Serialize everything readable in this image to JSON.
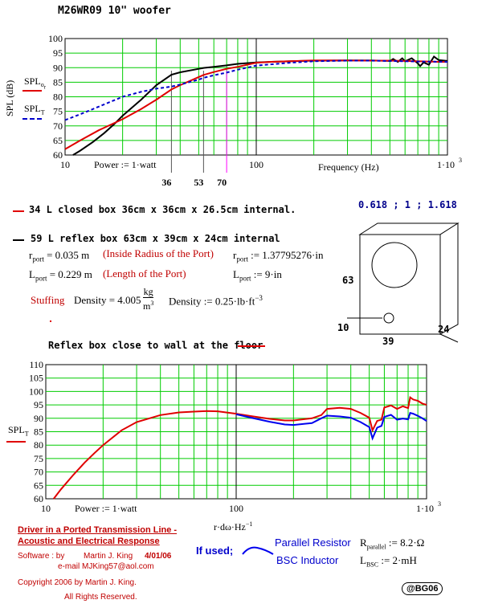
{
  "title": "M26WR09 10\" woofer",
  "chart_data": [
    {
      "type": "line",
      "x_scale": "log",
      "xlim": [
        10,
        1000
      ],
      "ylim": [
        60,
        100
      ],
      "yticks": [
        60,
        65,
        70,
        75,
        80,
        85,
        90,
        95,
        100
      ],
      "xtick_labels": [
        "10",
        "100",
        "1·10",
        "3"
      ],
      "xlabel": "Frequency (Hz)",
      "ylabel": "SPL (dB)",
      "legend": [
        "SPL",
        "o",
        "r",
        "SPL",
        "T"
      ],
      "annotation": "Power := 1·watt",
      "markers": [
        {
          "label": "36",
          "x": 36
        },
        {
          "label": "53",
          "x": 53
        },
        {
          "label": "70",
          "x": 70
        },
        {
          "x": 100
        }
      ],
      "grid": true,
      "series": [
        {
          "color": "#000000",
          "style": "solid",
          "x": [
            11,
            12,
            14,
            16,
            18,
            20,
            25,
            30,
            36,
            40,
            50,
            53,
            60,
            70,
            80,
            100,
            120,
            150,
            200,
            300,
            400,
            500,
            520,
            550,
            580,
            600,
            650,
            700,
            720,
            750,
            800,
            850,
            900,
            1000
          ],
          "y": [
            60,
            61.5,
            64.5,
            67.5,
            70.5,
            73.5,
            79,
            84,
            87.6,
            88.4,
            89.6,
            89.9,
            90.3,
            90.8,
            91.3,
            91.8,
            92,
            92.2,
            92.4,
            92.5,
            92.5,
            92.3,
            93,
            92,
            93.2,
            92.2,
            93.2,
            91.5,
            90.5,
            91.8,
            91,
            93.8,
            92.6,
            92.3
          ]
        },
        {
          "color": "#e00000",
          "style": "solid",
          "x": [
            10,
            12,
            15,
            20,
            25,
            30,
            36,
            40,
            50,
            53,
            60,
            70,
            80,
            100,
            120,
            150,
            200,
            300,
            400,
            500,
            600,
            700,
            800,
            900,
            1000
          ],
          "y": [
            62,
            65,
            68.5,
            72.3,
            75.8,
            79,
            82.5,
            84,
            86.8,
            87.5,
            88.5,
            89.6,
            90.3,
            91.7,
            92,
            92.2,
            92.5,
            92.5,
            92.4,
            92.4,
            92.3,
            92.2,
            92.1,
            92,
            92
          ]
        },
        {
          "color": "#0000cc",
          "style": "dashed",
          "x": [
            10,
            12,
            15,
            20,
            25,
            30,
            36,
            40,
            50,
            53,
            60,
            70,
            80,
            100,
            150,
            200,
            300,
            400,
            500,
            700,
            1000
          ],
          "y": [
            72,
            74,
            76.6,
            80,
            81.7,
            82.8,
            83.5,
            84.2,
            85.9,
            86.5,
            87.4,
            88.3,
            89.3,
            90.7,
            91.7,
            92.2,
            92.4,
            92.4,
            92.3,
            92.1,
            92
          ]
        }
      ]
    },
    {
      "type": "line",
      "x_scale": "log",
      "xlim": [
        10,
        1000
      ],
      "ylim": [
        60,
        110
      ],
      "yticks": [
        60,
        65,
        70,
        75,
        80,
        85,
        90,
        95,
        100,
        105,
        110
      ],
      "xtick_labels": [
        "10",
        "100",
        "1·10",
        "3"
      ],
      "xlabel": "r·dω·Hz",
      "xlabel_superscript": "−1",
      "ylabel": "SPL",
      "ylabel_subscript": "T",
      "annotation": "Power := 1·watt",
      "grid": true,
      "series": [
        {
          "color": "#e00000",
          "style": "solid",
          "x": [
            11,
            12,
            14,
            16,
            18,
            20,
            25,
            30,
            40,
            50,
            60,
            70,
            80,
            100,
            120,
            150,
            180,
            200,
            250,
            280,
            300,
            350,
            400,
            450,
            500,
            520,
            550,
            580,
            600,
            650,
            700,
            750,
            800,
            820,
            850,
            900,
            950,
            1000
          ],
          "y": [
            60,
            63.5,
            69,
            73.5,
            77,
            80,
            85.5,
            88.6,
            91.2,
            92.2,
            92.5,
            92.7,
            92.6,
            91.7,
            90.8,
            89.8,
            89.2,
            89.2,
            90,
            91.2,
            93.5,
            93.9,
            93.5,
            92,
            90.2,
            85.5,
            89,
            89.5,
            94,
            94.8,
            93.5,
            94.5,
            93.8,
            97.8,
            97,
            96.5,
            95.5,
            95
          ]
        },
        {
          "color": "#0000ee",
          "style": "solid",
          "x": [
            100,
            120,
            150,
            180,
            200,
            250,
            280,
            300,
            350,
            400,
            450,
            500,
            520,
            550,
            580,
            600,
            650,
            700,
            750,
            800,
            820,
            850,
            900,
            950,
            1000
          ],
          "y": [
            91.5,
            90.2,
            88.7,
            87.7,
            87.5,
            88.2,
            90,
            91,
            90.7,
            90.2,
            88.6,
            86.7,
            82.5,
            86.5,
            87.2,
            90.5,
            91.3,
            89.5,
            89.9,
            89.6,
            92,
            91.7,
            90.9,
            90,
            89
          ]
        }
      ]
    }
  ],
  "info": {
    "closed_box": "34 L   closed box  36cm x 36cm x 26.5cm internal.",
    "ratios": "0.618 ; 1 ; 1.618",
    "reflex_box": "59 L   reflex box   63cm x 39cm x 24cm internal",
    "r_port_val": "= 0.035 m",
    "r_port_note": "(Inside Radius of the Port)",
    "r_port_assign": ":= 1.37795276·in",
    "l_port_val": "= 0.229 m",
    "l_port_note": "(Length of the Port)",
    "l_port_assign": ":= 9·in",
    "stuffing_label": "Stuffing",
    "density_label": "Density = 4.005",
    "density_num": "kg",
    "density_den": "m",
    "density_den_exp": "3",
    "density_assign": "Density := 0.25·lb·ft",
    "density_assign_exp": "−3",
    "reflex_wall": "Reflex box close to wall at the floor",
    "r_sym": "r",
    "r_sub": "port",
    "l_sym": "L",
    "l_sub": "port"
  },
  "box_dims": {
    "height": "63",
    "port_offset": "10",
    "width": "39",
    "depth": "24"
  },
  "footer": {
    "driver_line1": "Driver in a Ported Transmission Line -",
    "driver_line2": "Acoustic and Electrical Response",
    "software_label": "Software :  by",
    "author": "Martin J. King",
    "date": "4/01/06",
    "email": "e-mail  MJKing57@aol.com",
    "copyright": "Copyright 2006 by Martin J. King.",
    "rights": "All Rights Reserved.",
    "if_used": "If used;",
    "parallel_resistor": "Parallel Resistor",
    "bsc_inductor": "BSC Inductor",
    "r_parallel_sym": "R",
    "r_parallel_sub": "parallel",
    "r_parallel_val": ":= 8.2·Ω",
    "l_bsc_sym": "L",
    "l_bsc_sub": "BSC",
    "l_bsc_val": ":= 2·mH",
    "badge": "@BG06"
  }
}
